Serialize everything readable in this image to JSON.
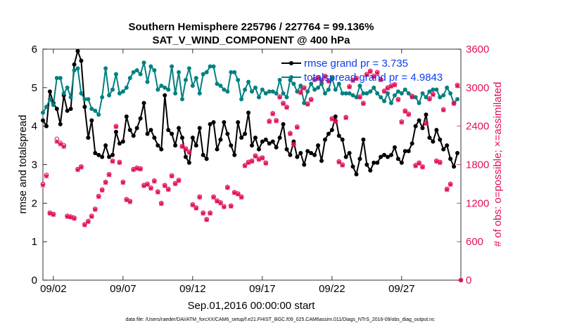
{
  "chart_data": {
    "type": "line",
    "title": "Southern Hemisphere 225796 / 227764 = 99.136%",
    "subtitle": "SAT_V_WIND_COMPONENT @ 400 hPa",
    "xlabel": "Sep.01,2016 00:00:00 start",
    "ylabel_left": "rmse and totalspread",
    "ylabel_right": "# of obs: o=possible; ×=assimilated",
    "footer": "data file: /Users/raeder/DAI/ATM_forcXX/CAM6_setup/f.e21.FHIST_BGC.f09_025.CAM6assim.011/Diags_NTrS_2016-09/obs_diag_output.nc",
    "x_tick_labels": [
      "09/02",
      "09/07",
      "09/12",
      "09/17",
      "09/22",
      "09/27"
    ],
    "x_ticks": [
      2,
      7,
      12,
      17,
      22,
      27
    ],
    "xlim": [
      1.25,
      31.25
    ],
    "ylim_left": [
      0,
      6
    ],
    "ylim_right": [
      0,
      3600
    ],
    "y_ticks_left": [
      0,
      1,
      2,
      3,
      4,
      5,
      6
    ],
    "y_ticks_right": [
      0,
      600,
      1200,
      1800,
      2400,
      3000,
      3600
    ],
    "legend": [
      {
        "label": "rmse grand pr = 3.735",
        "color": "#000000"
      },
      {
        "label": "totalspread grand pr = 4.9843",
        "color": "#008080"
      }
    ],
    "series": [
      {
        "name": "rmse",
        "color": "#000000",
        "axis": "left",
        "x": [
          1.25,
          1.5,
          1.75,
          2,
          2.25,
          2.5,
          2.75,
          3,
          3.25,
          3.5,
          3.75,
          4,
          4.25,
          4.5,
          4.75,
          5,
          5.25,
          5.5,
          5.75,
          6,
          6.25,
          6.5,
          6.75,
          7,
          7.25,
          7.5,
          7.75,
          8,
          8.25,
          8.5,
          8.75,
          9,
          9.25,
          9.5,
          9.75,
          10,
          10.25,
          10.5,
          10.75,
          11,
          11.25,
          11.5,
          11.75,
          12,
          12.25,
          12.5,
          12.75,
          13,
          13.25,
          13.5,
          13.75,
          14,
          14.25,
          14.5,
          14.75,
          15,
          15.25,
          15.5,
          15.75,
          16,
          16.25,
          16.5,
          16.75,
          17,
          17.25,
          17.5,
          17.75,
          18,
          18.25,
          18.5,
          18.75,
          19,
          19.25,
          19.5,
          19.75,
          20,
          20.25,
          20.5,
          20.75,
          21,
          21.25,
          21.5,
          21.75,
          22,
          22.25,
          22.5,
          22.75,
          23,
          23.25,
          23.5,
          23.75,
          24,
          24.25,
          24.5,
          24.75,
          25,
          25.25,
          25.5,
          25.75,
          26,
          26.25,
          26.5,
          26.75,
          27,
          27.25,
          27.5,
          27.75,
          28,
          28.25,
          28.5,
          28.75,
          29,
          29.25,
          29.5,
          29.75,
          30,
          30.25,
          30.5,
          30.75,
          31
        ],
        "y": [
          4.15,
          4.0,
          4.9,
          4.6,
          4.45,
          4.05,
          4.8,
          4.4,
          4.45,
          5.6,
          5.95,
          5.7,
          4.5,
          3.7,
          4.15,
          3.3,
          3.25,
          3.2,
          3.5,
          3.2,
          3.25,
          3.85,
          3.55,
          3.6,
          4.25,
          3.9,
          3.75,
          3.95,
          4.2,
          4.6,
          3.8,
          3.9,
          3.7,
          3.5,
          3.4,
          4.8,
          3.9,
          3.8,
          3.5,
          3.95,
          3.7,
          3.2,
          3.05,
          3.7,
          3.5,
          3.95,
          3.25,
          3.15,
          4.05,
          4.1,
          3.4,
          3.65,
          4.1,
          3.8,
          3.5,
          3.25,
          4.1,
          3.7,
          3.8,
          4.35,
          3.5,
          3.7,
          3.4,
          3.6,
          3.65,
          3.55,
          3.6,
          3.45,
          3.7,
          4.05,
          3.4,
          3.25,
          3.6,
          3.2,
          3.3,
          3.0,
          3.35,
          3.3,
          3.25,
          3.5,
          3.1,
          3.65,
          3.8,
          3.9,
          4.25,
          3.75,
          3.65,
          3.2,
          3.3,
          2.95,
          2.75,
          3.15,
          3.65,
          3.0,
          2.85,
          3.05,
          3.05,
          3.2,
          3.25,
          3.2,
          3.25,
          3.45,
          3.15,
          3.05,
          3.35,
          3.35,
          3.55,
          4.0,
          4.15,
          3.95,
          4.3,
          3.7,
          3.6,
          3.9,
          3.65,
          3.4,
          3.5,
          3.15,
          2.95,
          3.3
        ]
      },
      {
        "name": "totalspread",
        "color": "#008080",
        "axis": "left",
        "x": [
          1.25,
          1.5,
          1.75,
          2,
          2.25,
          2.5,
          2.75,
          3,
          3.25,
          3.5,
          3.75,
          4,
          4.25,
          4.5,
          4.75,
          5,
          5.25,
          5.5,
          5.75,
          6,
          6.25,
          6.5,
          6.75,
          7,
          7.25,
          7.5,
          7.75,
          8,
          8.25,
          8.5,
          8.75,
          9,
          9.25,
          9.5,
          9.75,
          10,
          10.25,
          10.5,
          10.75,
          11,
          11.25,
          11.5,
          11.75,
          12,
          12.25,
          12.5,
          12.75,
          13,
          13.25,
          13.5,
          13.75,
          14,
          14.25,
          14.5,
          14.75,
          15,
          15.25,
          15.5,
          15.75,
          16,
          16.25,
          16.5,
          16.75,
          17,
          17.25,
          17.5,
          17.75,
          18,
          18.25,
          18.5,
          18.75,
          19,
          19.25,
          19.5,
          19.75,
          20,
          20.25,
          20.5,
          20.75,
          21,
          21.25,
          21.5,
          21.75,
          22,
          22.25,
          22.5,
          22.75,
          23,
          23.25,
          23.5,
          23.75,
          24,
          24.25,
          24.5,
          24.75,
          25,
          25.25,
          25.5,
          25.75,
          26,
          26.25,
          26.5,
          26.75,
          27,
          27.25,
          27.5,
          27.75,
          28,
          28.25,
          28.5,
          28.75,
          29,
          29.25,
          29.5,
          29.75,
          30,
          30.25,
          30.5,
          30.75,
          31
        ],
        "y": [
          4.35,
          4.5,
          4.7,
          4.55,
          5.25,
          5.25,
          4.85,
          5.0,
          4.75,
          5.45,
          5.5,
          4.85,
          4.7,
          4.7,
          4.45,
          4.4,
          4.3,
          4.75,
          5.5,
          4.8,
          4.95,
          5.35,
          4.85,
          4.9,
          5.0,
          5.25,
          5.4,
          5.45,
          5.35,
          5.65,
          5.15,
          5.55,
          5.45,
          4.95,
          5.05,
          5.0,
          4.95,
          5.55,
          4.85,
          5.4,
          4.7,
          5.2,
          5.5,
          5.05,
          5.25,
          4.85,
          5.35,
          5.4,
          5.55,
          5.55,
          5.1,
          5.05,
          4.95,
          4.9,
          5.4,
          5.4,
          5.2,
          4.7,
          4.95,
          5.15,
          4.9,
          5.0,
          4.75,
          4.95,
          4.85,
          4.9,
          4.9,
          4.85,
          5.2,
          4.85,
          4.75,
          5.2,
          5.1,
          4.9,
          5.05,
          4.6,
          4.9,
          5.1,
          4.95,
          5.0,
          5.1,
          4.85,
          4.95,
          5.25,
          4.95,
          5.1,
          4.85,
          4.85,
          4.85,
          4.8,
          4.75,
          5.05,
          4.85,
          4.85,
          4.9,
          5.0,
          4.85,
          4.75,
          4.65,
          4.85,
          4.6,
          4.8,
          4.9,
          4.85,
          4.95,
          4.85,
          4.75,
          4.75,
          4.6,
          4.85,
          4.75,
          4.9,
          4.95,
          4.95,
          4.75,
          4.8,
          5.0,
          4.85,
          4.6,
          4.7
        ]
      },
      {
        "name": "possible",
        "color": "#e0105a",
        "axis": "right",
        "marker": "o",
        "x": [
          1.25,
          1.5,
          1.75,
          2,
          2.25,
          2.5,
          2.75,
          3,
          3.25,
          3.5,
          3.75,
          4,
          4.25,
          4.5,
          4.75,
          5,
          5.25,
          5.5,
          5.75,
          6,
          6.25,
          6.5,
          6.75,
          7,
          7.25,
          7.5,
          7.75,
          8,
          8.25,
          8.5,
          8.75,
          9,
          9.25,
          9.5,
          9.75,
          10,
          10.25,
          10.5,
          10.75,
          11,
          11.25,
          11.5,
          11.75,
          12,
          12.25,
          12.5,
          12.75,
          13,
          13.25,
          13.5,
          13.75,
          14,
          14.25,
          14.5,
          14.75,
          15,
          15.25,
          15.5,
          15.75,
          16,
          16.25,
          16.5,
          16.75,
          17,
          17.25,
          17.5,
          17.75,
          18,
          18.25,
          18.5,
          18.75,
          19,
          19.25,
          19.5,
          19.75,
          20,
          20.25,
          20.5,
          20.75,
          21,
          21.25,
          21.5,
          21.75,
          22,
          22.25,
          22.5,
          22.75,
          23,
          23.25,
          23.5,
          23.75,
          24,
          24.25,
          24.5,
          24.75,
          25,
          25.25,
          25.5,
          25.75,
          26,
          26.25,
          26.5,
          26.75,
          27,
          27.25,
          27.5,
          27.75,
          28,
          28.25,
          28.5,
          28.75,
          29,
          29.25,
          29.5,
          29.75,
          30,
          30.25,
          30.5,
          30.75,
          31
        ],
        "y": [
          1500,
          1640,
          1050,
          1030,
          2200,
          2140,
          2100,
          1000,
          990,
          970,
          1730,
          1770,
          870,
          920,
          1000,
          1110,
          1310,
          1410,
          1530,
          1650,
          1860,
          2400,
          1840,
          1530,
          1260,
          1230,
          1730,
          1750,
          1740,
          1480,
          1500,
          1440,
          1550,
          1380,
          1200,
          1480,
          1420,
          1630,
          1510,
          1560,
          2090,
          2050,
          2000,
          1180,
          1130,
          1300,
          1050,
          950,
          1050,
          1300,
          1240,
          1210,
          1150,
          1450,
          1160,
          1370,
          1350,
          1300,
          1790,
          1840,
          1860,
          1940,
          1890,
          1910,
          1830,
          2480,
          2600,
          2490,
          2860,
          2760,
          2700,
          2290,
          2120,
          2390,
          2930,
          3000,
          2750,
          2820,
          3130,
          3160,
          3120,
          3180,
          3110,
          2520,
          2480,
          1850,
          1800,
          2540,
          3020,
          3120,
          3150,
          2860,
          2760,
          3210,
          3260,
          3180,
          3240,
          3130,
          2950,
          3000,
          3030,
          3050,
          2820,
          2470,
          2640,
          2590,
          2870,
          1790,
          1830,
          1770,
          2450,
          2830,
          2900,
          1860,
          1840,
          2660,
          1420,
          1500,
          2760,
          3040
        ]
      },
      {
        "name": "assimilated",
        "color": "#e0105a",
        "axis": "right",
        "marker": "x",
        "x": [
          1.25,
          1.5,
          1.75,
          2,
          2.25,
          2.5,
          2.75,
          3,
          3.25,
          3.5,
          3.75,
          4,
          4.25,
          4.5,
          4.75,
          5,
          5.25,
          5.5,
          5.75,
          6,
          6.25,
          6.5,
          6.75,
          7,
          7.25,
          7.5,
          7.75,
          8,
          8.25,
          8.5,
          8.75,
          9,
          9.25,
          9.5,
          9.75,
          10,
          10.25,
          10.5,
          10.75,
          11,
          11.25,
          11.5,
          11.75,
          12,
          12.25,
          12.5,
          12.75,
          13,
          13.25,
          13.5,
          13.75,
          14,
          14.25,
          14.5,
          14.75,
          15,
          15.25,
          15.5,
          15.75,
          16,
          16.25,
          16.5,
          16.75,
          17,
          17.25,
          17.5,
          17.75,
          18,
          18.25,
          18.5,
          18.75,
          19,
          19.25,
          19.5,
          19.75,
          20,
          20.25,
          20.5,
          20.75,
          21,
          21.25,
          21.5,
          21.75,
          22,
          22.25,
          22.5,
          22.75,
          23,
          23.25,
          23.5,
          23.75,
          24,
          24.25,
          24.5,
          24.75,
          25,
          25.25,
          25.5,
          25.75,
          26,
          26.25,
          26.5,
          26.75,
          27,
          27.25,
          27.5,
          27.75,
          28,
          28.25,
          28.5,
          28.75,
          29,
          29.25,
          29.5,
          29.75,
          30,
          30.25,
          30.5,
          30.75,
          31
        ],
        "y": [
          1480,
          1620,
          1040,
          1020,
          2160,
          2120,
          2080,
          990,
          980,
          960,
          1720,
          1760,
          860,
          910,
          990,
          1100,
          1300,
          1400,
          1520,
          1640,
          1850,
          2390,
          1830,
          1520,
          1250,
          1220,
          1720,
          1740,
          1730,
          1470,
          1490,
          1430,
          1540,
          1370,
          1190,
          1470,
          1410,
          1620,
          1500,
          1550,
          2080,
          2040,
          1990,
          1170,
          1120,
          1290,
          1040,
          940,
          1040,
          1290,
          1230,
          1200,
          1140,
          1440,
          1150,
          1360,
          1340,
          1290,
          1780,
          1830,
          1850,
          1930,
          1880,
          1900,
          1820,
          2470,
          2590,
          2480,
          2850,
          2750,
          2690,
          2280,
          2110,
          2380,
          2920,
          2990,
          2740,
          2810,
          3120,
          3150,
          3110,
          3170,
          3100,
          2510,
          2470,
          1840,
          1790,
          2530,
          3010,
          3110,
          3140,
          2850,
          2750,
          3200,
          3250,
          3170,
          3230,
          3120,
          2940,
          2990,
          3020,
          3040,
          2810,
          2460,
          2630,
          2580,
          2860,
          1780,
          1820,
          1760,
          2440,
          2820,
          2890,
          1850,
          1830,
          2650,
          1410,
          1490,
          2750,
          3030
        ]
      }
    ],
    "final_point_right": {
      "x": 31.25,
      "y": 0
    }
  }
}
